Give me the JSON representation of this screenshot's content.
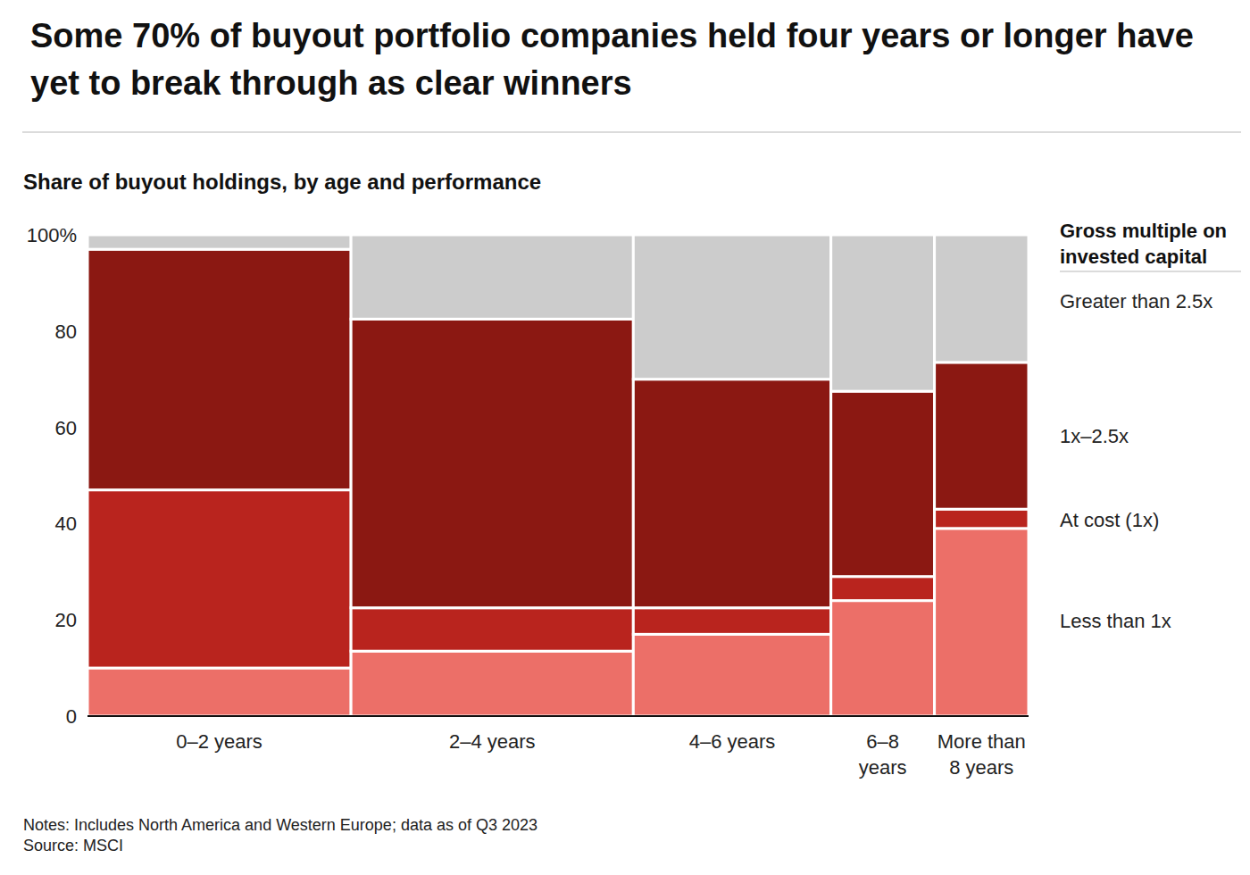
{
  "chart_data": {
    "type": "bar",
    "stacked": true,
    "title": "Some 70% of buyout portfolio companies held four years or longer have yet to break through as clear winners",
    "subtitle": "Share of buyout holdings, by age and performance",
    "legend_title": "Gross multiple on invested capital",
    "notes": "Notes: Includes North America and Western Europe; data as of Q3 2023",
    "source": "Source: MSCI",
    "categories": [
      "0–2 years",
      "2–4 years",
      "4–6 years",
      "6–8 years",
      "More than 8 years"
    ],
    "widths": [
      28,
      30,
      21,
      11,
      10
    ],
    "series": [
      {
        "name": "Less than 1x",
        "color": "#ec6f68",
        "values": [
          10,
          13.5,
          17,
          24,
          39
        ]
      },
      {
        "name": "At cost (1x)",
        "color": "#b9241e",
        "values": [
          37,
          9,
          5.5,
          5,
          4
        ]
      },
      {
        "name": "1x–2.5x",
        "color": "#8b1812",
        "values": [
          50,
          60,
          47.5,
          38.5,
          30.5
        ]
      },
      {
        "name": "Greater than 2.5x",
        "color": "#cccccc",
        "values": [
          3,
          17.5,
          30,
          32.5,
          26.5
        ]
      }
    ],
    "ylim": [
      0,
      100
    ],
    "yticks": [
      0,
      20,
      40,
      60,
      80,
      {
        "value": 100,
        "label": "100%"
      }
    ],
    "legend": "right"
  }
}
